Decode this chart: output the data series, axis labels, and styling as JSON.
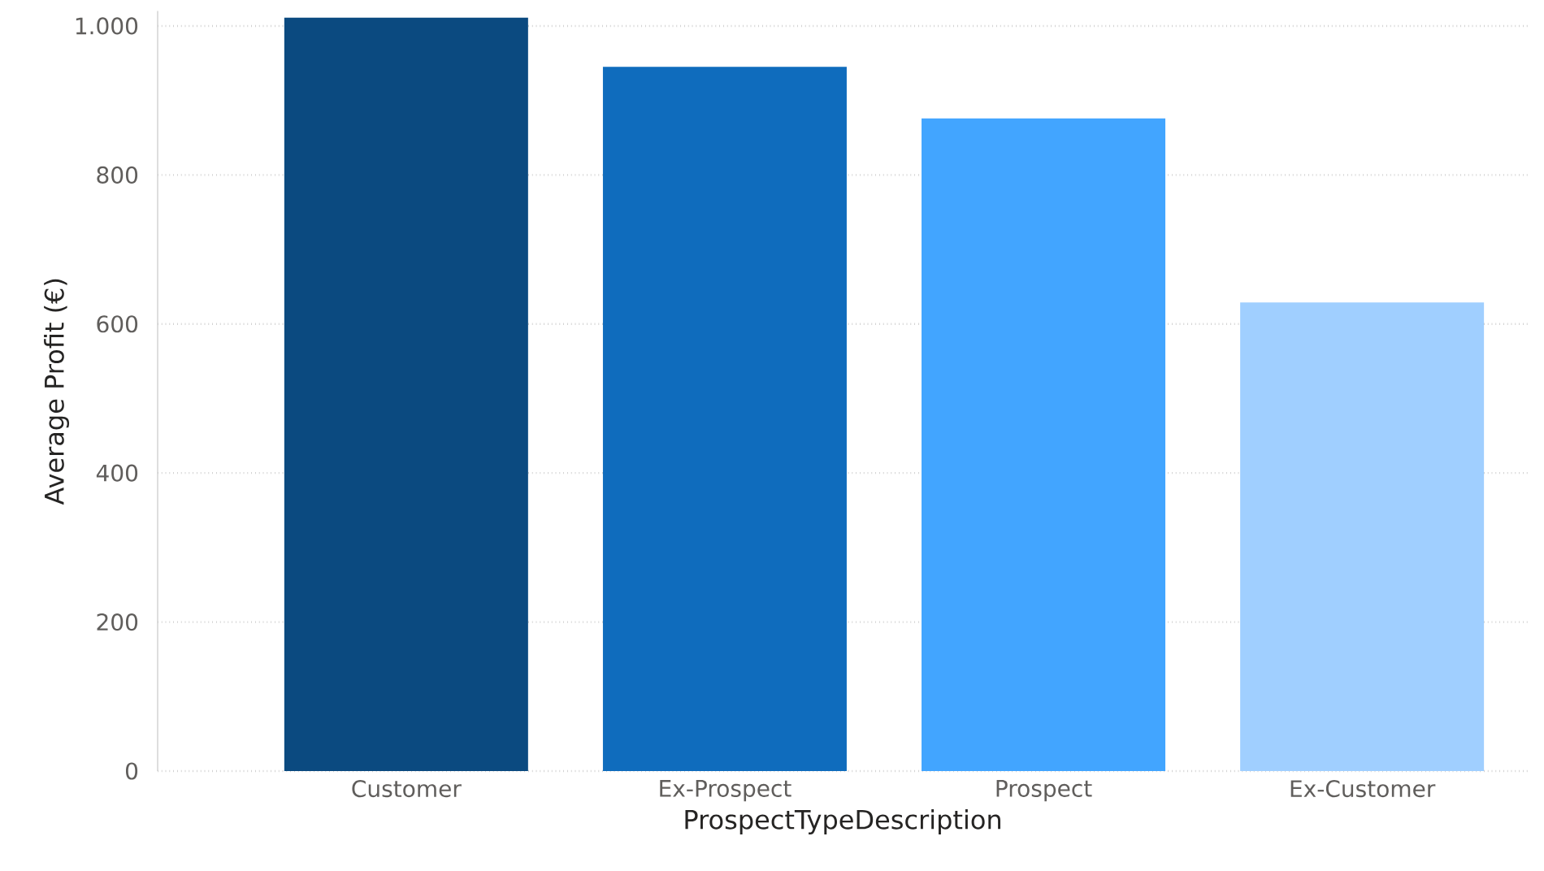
{
  "chart_data": {
    "type": "bar",
    "xlabel": "ProspectTypeDescription",
    "ylabel": "Average Profit (€)",
    "categories": [
      "Customer",
      "Ex-Prospect",
      "Prospect",
      "Ex-Customer"
    ],
    "values": [
      1011,
      945,
      876,
      629
    ],
    "colors": [
      "#0b4a80",
      "#0f6cbd",
      "#42a5ff",
      "#a0cfff"
    ],
    "ylim": [
      0,
      1020
    ],
    "yticks": [
      0,
      200,
      400,
      600,
      800,
      {
        "value": 1000,
        "label": "1.000"
      }
    ],
    "grid": "y"
  }
}
